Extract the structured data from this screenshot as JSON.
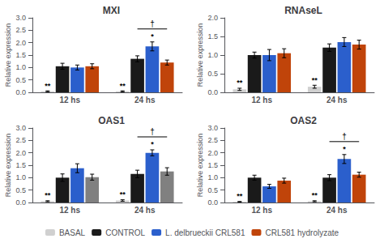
{
  "chart_data": [
    {
      "type": "bar",
      "title": "MXI",
      "ylabel": "Relative expression",
      "categories": [
        "12 hs",
        "24 hs"
      ],
      "series": [
        {
          "name": "BASAL",
          "color": "#d0d0d0",
          "values": [
            0.04,
            0.04
          ],
          "error": [
            0.02,
            0.02
          ]
        },
        {
          "name": "CONTROL",
          "color": "#1a1a1a",
          "values": [
            1.05,
            1.35
          ],
          "error": [
            0.12,
            0.12
          ]
        },
        {
          "name": "L. delbrueckii CRL581",
          "color": "#2b5fcc",
          "values": [
            1.0,
            1.85
          ],
          "error": [
            0.1,
            0.18
          ]
        },
        {
          "name": "CRL581 hydrolyzate",
          "color": "#c0440a",
          "values": [
            1.05,
            1.2
          ],
          "error": [
            0.1,
            0.1
          ]
        }
      ],
      "ylim": [
        0,
        3
      ],
      "yticks": [
        {
          "value": 0,
          "label": "0.0"
        },
        0.5,
        {
          "value": 1,
          "label": "1.0"
        },
        1.5,
        {
          "value": 2,
          "label": "2.0"
        },
        2.5,
        {
          "value": 3,
          "label": "3.0"
        }
      ],
      "grid": false,
      "legend": "bottom",
      "annotations": [
        {
          "text": "**",
          "category": "12 hs",
          "series": "BASAL"
        },
        {
          "text": "**",
          "category": "24 hs",
          "series": "BASAL"
        },
        {
          "text": "*",
          "category": "24 hs",
          "series": "L. delbrueckii CRL581"
        },
        {
          "text": "†",
          "category": "24 hs",
          "series": [
            "CONTROL",
            "CRL581 hydrolyzate"
          ]
        }
      ]
    },
    {
      "type": "bar",
      "title": "RNAseL",
      "ylabel": "Relative expression",
      "categories": [
        "12 hs",
        "24 hs"
      ],
      "series": [
        {
          "name": "BASAL",
          "color": "#d0d0d0",
          "values": [
            0.08,
            0.15
          ],
          "error": [
            0.03,
            0.04
          ]
        },
        {
          "name": "CONTROL",
          "color": "#1a1a1a",
          "values": [
            1.0,
            1.2
          ],
          "error": [
            0.08,
            0.1
          ]
        },
        {
          "name": "L. delbrueckii CRL581",
          "color": "#2b5fcc",
          "values": [
            1.0,
            1.35
          ],
          "error": [
            0.15,
            0.12
          ]
        },
        {
          "name": "CRL581 hydrolyzate",
          "color": "#c0440a",
          "values": [
            1.05,
            1.28
          ],
          "error": [
            0.12,
            0.12
          ]
        }
      ],
      "ylim": [
        0,
        2
      ],
      "yticks": [
        {
          "value": 0,
          "label": "0.0"
        },
        0.5,
        {
          "value": 1,
          "label": "1.0"
        },
        1.5,
        {
          "value": 2,
          "label": "2.0"
        }
      ],
      "grid": false,
      "legend": "bottom",
      "annotations": [
        {
          "text": "**",
          "category": "12 hs",
          "series": "BASAL"
        },
        {
          "text": "**",
          "category": "24 hs",
          "series": "BASAL"
        }
      ]
    },
    {
      "type": "bar",
      "title": "OAS1",
      "ylabel": "Relative expression",
      "categories": [
        "12 hs",
        "24 hs"
      ],
      "series": [
        {
          "name": "BASAL",
          "color": "#d0d0d0",
          "values": [
            0.05,
            0.08
          ],
          "error": [
            0.02,
            0.03
          ]
        },
        {
          "name": "CONTROL",
          "color": "#1a1a1a",
          "values": [
            1.0,
            1.15
          ],
          "error": [
            0.15,
            0.15
          ]
        },
        {
          "name": "L. delbrueckii CRL581",
          "color": "#2b5fcc",
          "values": [
            1.38,
            2.0
          ],
          "error": [
            0.18,
            0.12
          ]
        },
        {
          "name": "CRL581 hydrolyzate",
          "color": "#808080",
          "values": [
            1.02,
            1.25
          ],
          "error": [
            0.12,
            0.15
          ]
        }
      ],
      "ylim": [
        0,
        3
      ],
      "yticks": [
        {
          "value": 0,
          "label": "0.0"
        },
        0.5,
        {
          "value": 1,
          "label": "1.0"
        },
        1.5,
        {
          "value": 2,
          "label": "2.0"
        },
        2.5,
        {
          "value": 3,
          "label": "3.0"
        }
      ],
      "grid": false,
      "legend": "bottom",
      "annotations": [
        {
          "text": "**",
          "category": "12 hs",
          "series": "BASAL"
        },
        {
          "text": "**",
          "category": "24 hs",
          "series": "BASAL"
        },
        {
          "text": "*",
          "category": "24 hs",
          "series": "L. delbrueckii CRL581"
        },
        {
          "text": "†",
          "category": "24 hs",
          "series": [
            "CONTROL",
            "CRL581 hydrolyzate"
          ]
        }
      ]
    },
    {
      "type": "bar",
      "title": "OAS2",
      "ylabel": "Relative expression",
      "categories": [
        "12 hs",
        "24 hs"
      ],
      "series": [
        {
          "name": "BASAL",
          "color": "#d0d0d0",
          "values": [
            0.03,
            0.05
          ],
          "error": [
            0.01,
            0.02
          ]
        },
        {
          "name": "CONTROL",
          "color": "#1a1a1a",
          "values": [
            1.0,
            1.0
          ],
          "error": [
            0.1,
            0.12
          ]
        },
        {
          "name": "L. delbrueckii CRL581",
          "color": "#2b5fcc",
          "values": [
            0.65,
            1.75
          ],
          "error": [
            0.08,
            0.18
          ]
        },
        {
          "name": "CRL581 hydrolyzate",
          "color": "#c0440a",
          "values": [
            0.88,
            1.12
          ],
          "error": [
            0.1,
            0.1
          ]
        }
      ],
      "ylim": [
        0,
        3
      ],
      "yticks": [
        {
          "value": 0,
          "label": "0.0"
        },
        0.5,
        {
          "value": 1,
          "label": "1.0"
        },
        1.5,
        {
          "value": 2,
          "label": "2.0"
        },
        2.5,
        {
          "value": 3,
          "label": "3.0"
        }
      ],
      "grid": false,
      "legend": "bottom",
      "annotations": [
        {
          "text": "**",
          "category": "12 hs",
          "series": "BASAL"
        },
        {
          "text": "**",
          "category": "24 hs",
          "series": "BASAL"
        },
        {
          "text": "*",
          "category": "24 hs",
          "series": "L. delbrueckii CRL581"
        },
        {
          "text": "†",
          "category": "24 hs",
          "series": [
            "CONTROL",
            "CRL581 hydrolyzate"
          ]
        }
      ]
    }
  ]
}
